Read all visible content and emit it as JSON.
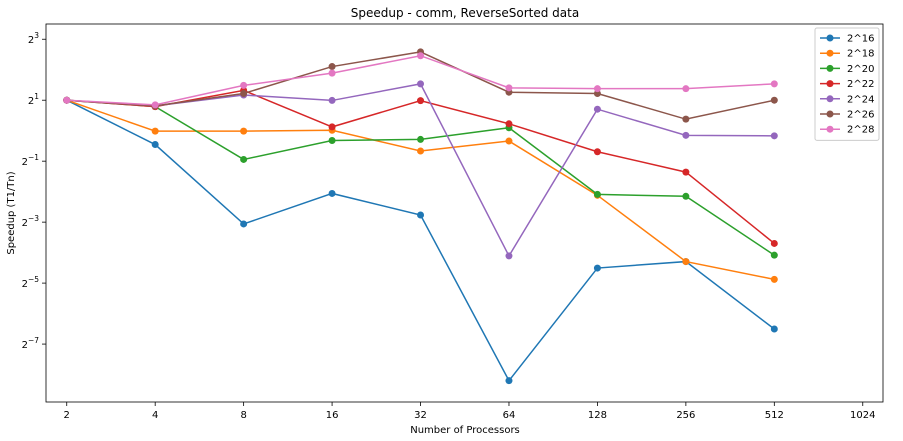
{
  "chart_data": {
    "type": "line",
    "title": "Speedup - comm, ReverseSorted data",
    "xlabel": "Number of Processors",
    "ylabel": "Speedup (T1/Tn)",
    "x_scale": "log2",
    "y_scale": "log2",
    "x_ticks": [
      2,
      4,
      8,
      16,
      32,
      64,
      128,
      256,
      512,
      1024
    ],
    "x_tick_labels": [
      "2",
      "4",
      "8",
      "16",
      "32",
      "64",
      "128",
      "256",
      "512",
      "1024"
    ],
    "y_tick_exponents": [
      -7,
      -5,
      -3,
      -1,
      1,
      3
    ],
    "y_tick_base": "2",
    "xlim": [
      1.7,
      1200
    ],
    "ylim_log2": [
      -8.9,
      3.5
    ],
    "grid": false,
    "legend_position": "top-right",
    "x": [
      2,
      4,
      8,
      16,
      32,
      64,
      128,
      256,
      512
    ],
    "series": [
      {
        "name": "2^16",
        "color": "#1f77b4",
        "values": [
          2.0,
          0.73,
          0.12,
          0.24,
          0.147,
          0.0034,
          0.044,
          0.051,
          0.011
        ]
      },
      {
        "name": "2^18",
        "color": "#ff7f0e",
        "values": [
          2.0,
          0.99,
          0.99,
          1.01,
          0.63,
          0.79,
          0.23,
          0.051,
          0.034
        ]
      },
      {
        "name": "2^20",
        "color": "#2ca02c",
        "values": [
          2.0,
          1.73,
          0.52,
          0.8,
          0.82,
          1.07,
          0.235,
          0.225,
          0.059
        ]
      },
      {
        "name": "2^22",
        "color": "#d62728",
        "values": [
          2.0,
          1.73,
          2.5,
          1.09,
          1.98,
          1.17,
          0.62,
          0.39,
          0.077
        ]
      },
      {
        "name": "2^24",
        "color": "#9467bd",
        "values": [
          2.0,
          1.76,
          2.25,
          1.99,
          2.9,
          0.058,
          1.63,
          0.9,
          0.89
        ]
      },
      {
        "name": "2^26",
        "color": "#8c564b",
        "values": [
          2.0,
          1.76,
          2.33,
          4.3,
          6.0,
          2.4,
          2.33,
          1.3,
          2.0
        ]
      },
      {
        "name": "2^28",
        "color": "#e377c2",
        "values": [
          2.0,
          1.8,
          2.8,
          3.7,
          5.5,
          2.65,
          2.6,
          2.6,
          2.9
        ]
      }
    ]
  }
}
